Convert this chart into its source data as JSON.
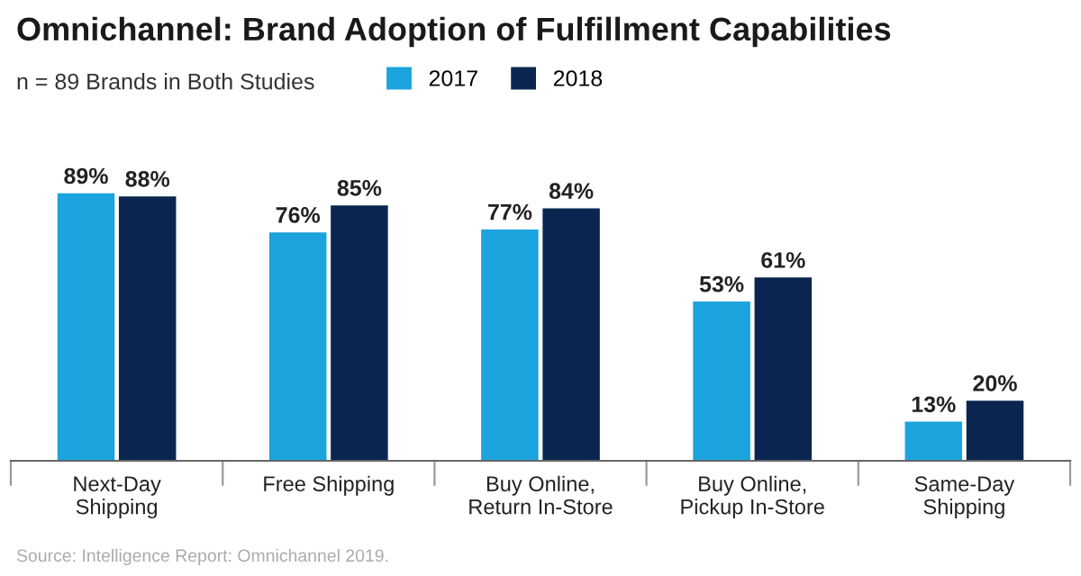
{
  "chart_data": {
    "type": "bar",
    "title": "Omnichannel: Brand Adoption of Fulfillment Capabilities",
    "subtitle": "n = 89 Brands in Both Studies",
    "categories": [
      "Next-Day\nShipping",
      "Free Shipping",
      "Buy Online,\nReturn In-Store",
      "Buy Online,\nPickup In-Store",
      "Same-Day\nShipping"
    ],
    "series": [
      {
        "name": "2017",
        "color": "#1aa3dc",
        "values": [
          89,
          76,
          77,
          53,
          13
        ],
        "value_labels": [
          "89%",
          "76%",
          "77%",
          "53%",
          "13%"
        ]
      },
      {
        "name": "2018",
        "color": "#0a2650",
        "values": [
          88,
          85,
          84,
          61,
          20
        ],
        "value_labels": [
          "88%",
          "85%",
          "84%",
          "61%",
          "20%"
        ]
      }
    ],
    "legend": "top left",
    "grid": false,
    "tick_labels": "x",
    "annotations": [
      "Source: Intelligence Report: Omnichannel 2019."
    ]
  }
}
